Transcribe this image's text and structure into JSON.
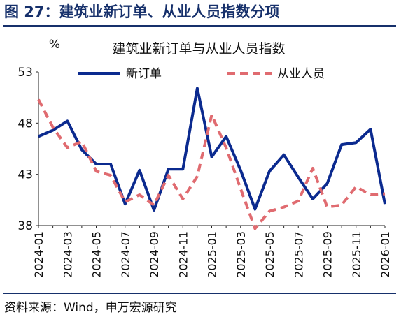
{
  "figure": {
    "title": "图 27：建筑业新订单、从业人员指数分项",
    "source": "资料来源：Wind，申万宏源研究"
  },
  "colors": {
    "brand": "#16306b",
    "series_new_orders": "#0b2a8f",
    "series_employment": "#e06b70"
  },
  "chart_data": {
    "type": "line",
    "title": "建筑业新订单与从业人员指数",
    "ylabel": "%",
    "xlabel": "",
    "ylim": [
      38,
      53
    ],
    "yticks": [
      38,
      43,
      48,
      53
    ],
    "grid": false,
    "legend": "top",
    "x": [
      "2024-01",
      "2024-02",
      "2024-03",
      "2024-04",
      "2024-05",
      "2024-06",
      "2024-07",
      "2024-08",
      "2024-09",
      "2024-10",
      "2024-11",
      "2024-12",
      "2025-01",
      "2025-02",
      "2025-03",
      "2025-04",
      "2025-05",
      "2025-06",
      "2025-07",
      "2025-08",
      "2025-09",
      "2025-10",
      "2025-11",
      "2025-12",
      "2026-01"
    ],
    "xticks": [
      "2024-01",
      "2024-03",
      "2024-05",
      "2024-07",
      "2024-09",
      "2024-11",
      "2025-01",
      "2025-03",
      "2025-05",
      "2025-07",
      "2025-09",
      "2025-11",
      "2026-01"
    ],
    "series": [
      {
        "name": "新订单",
        "style": "solid",
        "values": [
          46.7,
          47.3,
          48.2,
          45.4,
          44.0,
          44.0,
          40.1,
          43.4,
          39.5,
          43.5,
          43.5,
          51.4,
          44.7,
          46.7,
          43.4,
          39.6,
          43.3,
          44.9,
          42.7,
          40.6,
          42.1,
          45.9,
          46.1,
          47.4,
          40.1
        ]
      },
      {
        "name": "从业人员",
        "style": "dashed",
        "values": [
          50.3,
          47.6,
          45.6,
          46.2,
          43.3,
          42.9,
          40.3,
          41.0,
          40.0,
          42.9,
          40.6,
          42.8,
          48.8,
          45.6,
          41.6,
          37.7,
          39.4,
          39.8,
          40.4,
          43.6,
          39.8,
          40.0,
          41.8,
          41.0,
          41.1
        ]
      }
    ]
  }
}
